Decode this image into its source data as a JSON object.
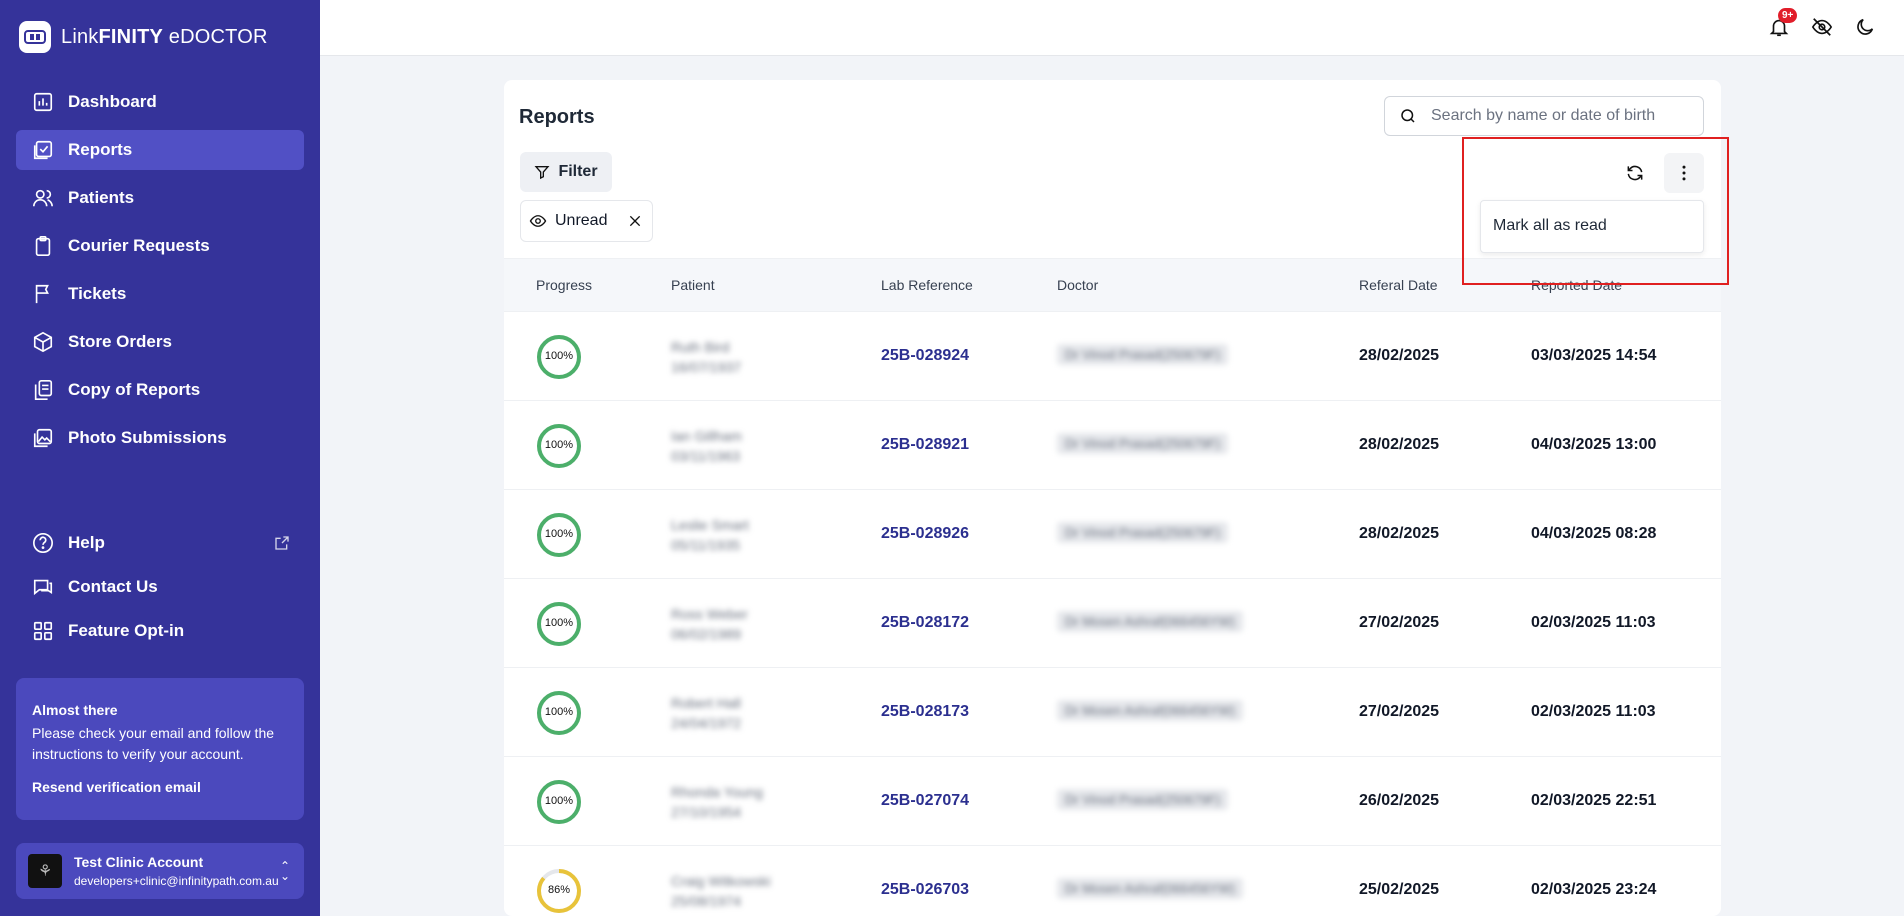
{
  "app": {
    "brand_prefix": "Link",
    "brand_bold": "FINITY",
    "brand_suffix": " eDOCTOR"
  },
  "sidebar": {
    "items": [
      {
        "label": "Dashboard",
        "icon": "chart-icon"
      },
      {
        "label": "Reports",
        "icon": "reports-icon",
        "active": true
      },
      {
        "label": "Patients",
        "icon": "users-icon"
      },
      {
        "label": "Courier Requests",
        "icon": "clipboard-icon"
      },
      {
        "label": "Tickets",
        "icon": "flag-icon"
      },
      {
        "label": "Store Orders",
        "icon": "box-icon"
      },
      {
        "label": "Copy of Reports",
        "icon": "copy-icon"
      },
      {
        "label": "Photo Submissions",
        "icon": "image-icon"
      }
    ],
    "secondary": [
      {
        "label": "Help",
        "icon": "help-icon"
      },
      {
        "label": "Contact Us",
        "icon": "chat-icon"
      },
      {
        "label": "Feature Opt-in",
        "icon": "grid-icon"
      }
    ],
    "notice": {
      "title": "Almost there",
      "body": "Please check your email and follow the instructions to verify your account.",
      "link": "Resend verification email"
    },
    "account": {
      "name": "Test Clinic Account",
      "email": "developers+clinic@infinitypath.com.au"
    }
  },
  "topbar": {
    "notification_badge": "9+"
  },
  "reports": {
    "title": "Reports",
    "search_placeholder": "Search by name or date of birth",
    "filter_label": "Filter",
    "active_filter": "Unread",
    "menu_item": "Mark all as read",
    "columns": [
      "Progress",
      "Patient",
      "Lab Reference",
      "Doctor",
      "Referal Date",
      "Reported Date"
    ],
    "rows": [
      {
        "progress": 100,
        "progress_label": "100%",
        "patient_name": "Ruth Bird",
        "patient_dob": "16/07/1937",
        "lab_ref": "25B-028924",
        "doctor": "Dr Vinod Prasad(250679F)",
        "referral_date": "28/02/2025",
        "reported_date": "03/03/2025 14:54"
      },
      {
        "progress": 100,
        "progress_label": "100%",
        "patient_name": "Ian Gillham",
        "patient_dob": "03/11/1963",
        "lab_ref": "25B-028921",
        "doctor": "Dr Vinod Prasad(250679F)",
        "referral_date": "28/02/2025",
        "reported_date": "04/03/2025 13:00"
      },
      {
        "progress": 100,
        "progress_label": "100%",
        "patient_name": "Leslie Smart",
        "patient_dob": "05/11/1935",
        "lab_ref": "25B-028926",
        "doctor": "Dr Vinod Prasad(250679F)",
        "referral_date": "28/02/2025",
        "reported_date": "04/03/2025 08:28"
      },
      {
        "progress": 100,
        "progress_label": "100%",
        "patient_name": "Ross Weber",
        "patient_dob": "06/02/1989",
        "lab_ref": "25B-028172",
        "doctor": "Dr Mosen Ashraf(066456YW)",
        "referral_date": "27/02/2025",
        "reported_date": "02/03/2025 11:03"
      },
      {
        "progress": 100,
        "progress_label": "100%",
        "patient_name": "Robert Hall",
        "patient_dob": "24/04/1972",
        "lab_ref": "25B-028173",
        "doctor": "Dr Mosen Ashraf(066456YW)",
        "referral_date": "27/02/2025",
        "reported_date": "02/03/2025 11:03"
      },
      {
        "progress": 100,
        "progress_label": "100%",
        "patient_name": "Rhonda Young",
        "patient_dob": "27/10/1954",
        "lab_ref": "25B-027074",
        "doctor": "Dr Vinod Prasad(250679F)",
        "referral_date": "26/02/2025",
        "reported_date": "02/03/2025 22:51"
      },
      {
        "progress": 86,
        "progress_label": "86%",
        "patient_name": "Craig Witkowski",
        "patient_dob": "25/08/1974",
        "lab_ref": "25B-026703",
        "doctor": "Dr Mosen Ashraf(066456YW)",
        "referral_date": "25/02/2025",
        "reported_date": "02/03/2025 23:24"
      }
    ]
  },
  "colors": {
    "sidebar": "#35339a",
    "sidebar_active": "#5150c5",
    "progress_complete": "#4caf6a",
    "progress_partial": "#e8c33a",
    "link": "#2b2f8f",
    "highlight": "#e02020"
  }
}
